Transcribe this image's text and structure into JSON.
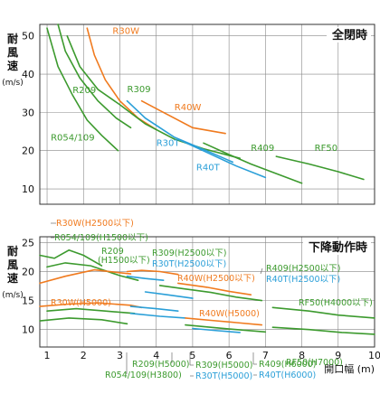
{
  "chart_data": [
    {
      "type": "line",
      "title": "全閉時",
      "ylabel": "耐風速",
      "yunit": "(m/s)",
      "ylim": [
        6,
        53
      ],
      "yticks": [
        10,
        20,
        30,
        40,
        50
      ],
      "xlim": [
        0.8,
        10
      ],
      "grid": true,
      "series": [
        {
          "name": "R30W",
          "color": "#f07a1e",
          "points": [
            [
              2.1,
              52
            ],
            [
              2.3,
              45
            ],
            [
              2.6,
              38.5
            ],
            [
              3.0,
              33
            ],
            [
              3.5,
              28.5
            ],
            [
              4.0,
              25.5
            ]
          ],
          "label_at": [
            2.8,
            50.5
          ]
        },
        {
          "name": "R40W",
          "color": "#f07a1e",
          "points": [
            [
              3.6,
              33
            ],
            [
              4.2,
              30
            ],
            [
              5.0,
              26
            ],
            [
              5.9,
              24.5
            ]
          ],
          "label_at": [
            4.5,
            30.6
          ]
        },
        {
          "name": "R309",
          "color": "#3c9a2e",
          "points": [
            [
              1.55,
              50
            ],
            [
              1.9,
              42
            ],
            [
              2.4,
              36
            ],
            [
              3.0,
              32
            ],
            [
              3.7,
              27
            ],
            [
              4.5,
              23
            ],
            [
              5.3,
              20.5
            ],
            [
              6.3,
              18
            ]
          ],
          "label_at": [
            3.2,
            35.3
          ]
        },
        {
          "name": "R209",
          "color": "#3c9a2e",
          "points": [
            [
              1.3,
              53
            ],
            [
              1.5,
              46
            ],
            [
              1.9,
              39
            ],
            [
              2.4,
              33
            ],
            [
              2.9,
              28.5
            ],
            [
              3.3,
              26
            ]
          ],
          "label_at": [
            1.7,
            35
          ]
        },
        {
          "name": "R054/109",
          "color": "#3c9a2e",
          "points": [
            [
              1.0,
              52
            ],
            [
              1.3,
              42
            ],
            [
              1.7,
              34.5
            ],
            [
              2.1,
              28
            ],
            [
              2.5,
              24
            ],
            [
              2.95,
              20
            ]
          ],
          "label_at": [
            1.1,
            22.6
          ]
        },
        {
          "name": "R30T",
          "color": "#2a9fd8",
          "points": [
            [
              3.2,
              33
            ],
            [
              3.7,
              28.5
            ],
            [
              4.5,
              23.5
            ],
            [
              5.5,
              19.5
            ],
            [
              6.1,
              17
            ]
          ],
          "label_at": [
            4.0,
            21.2
          ]
        },
        {
          "name": "R40T",
          "color": "#2a9fd8",
          "points": [
            [
              4.6,
              23
            ],
            [
              5.4,
              19.5
            ],
            [
              6.2,
              16
            ],
            [
              7.0,
              13
            ]
          ],
          "label_at": [
            5.1,
            14.8
          ]
        },
        {
          "name": "R409",
          "color": "#3c9a2e",
          "points": [
            [
              5.3,
              22
            ],
            [
              6.0,
              19
            ],
            [
              6.6,
              16.5
            ],
            [
              7.3,
              14
            ],
            [
              8.0,
              11.5
            ]
          ],
          "label_at": [
            6.6,
            19.9
          ]
        },
        {
          "name": "RF50",
          "color": "#3c9a2e",
          "points": [
            [
              7.3,
              18.5
            ],
            [
              8.2,
              16.5
            ],
            [
              9.0,
              14.5
            ],
            [
              9.7,
              12.5
            ]
          ],
          "label_at": [
            8.35,
            19.9
          ]
        }
      ]
    },
    {
      "type": "line",
      "title": "下降動作時",
      "ylabel": "耐風速",
      "yunit": "(m/s)",
      "xlabel": "開口幅 (m)",
      "ylim": [
        7,
        26
      ],
      "yticks": [
        10,
        15,
        20,
        25
      ],
      "xticks": [
        1,
        2,
        3,
        4,
        5,
        6,
        7,
        8,
        9,
        10
      ],
      "xlim": [
        0.8,
        10
      ],
      "grid": true,
      "series": [
        {
          "name": "R054/109(H1500以下)",
          "color": "#3c9a2e",
          "points": [
            [
              0.8,
              22.8
            ],
            [
              1.2,
              22.3
            ],
            [
              1.6,
              23.7
            ],
            [
              2.0,
              22.8
            ],
            [
              2.5,
              21
            ]
          ]
        },
        {
          "name": "R209(H1500以下)",
          "color": "#3c9a2e",
          "points": [
            [
              1.0,
              20.8
            ],
            [
              1.5,
              21.5
            ],
            [
              2.2,
              21
            ],
            [
              3.0,
              19.3
            ],
            [
              3.5,
              18.5
            ]
          ]
        },
        {
          "name": "R30W(H2500以下)",
          "color": "#f07a1e",
          "points": [
            [
              0.8,
              18
            ],
            [
              1.5,
              19.2
            ],
            [
              2.3,
              20.3
            ],
            [
              3.0,
              19.8
            ],
            [
              3.3,
              19.6
            ]
          ]
        },
        {
          "name": "R309(H2500以下)",
          "color": "#f07a1e",
          "points": [
            [
              3.2,
              20
            ],
            [
              3.6,
              20.2
            ],
            [
              4.1,
              20
            ],
            [
              4.6,
              19.5
            ]
          ]
        },
        {
          "name": "R30T(H2500以下)",
          "color": "#2a9fd8",
          "points": [
            [
              3.2,
              19.2
            ],
            [
              3.7,
              18.8
            ],
            [
              4.2,
              18.5
            ]
          ]
        },
        {
          "name": "R40W(H2500以下)",
          "color": "#f07a1e",
          "points": [
            [
              4.6,
              18
            ],
            [
              5.4,
              17.3
            ],
            [
              6.0,
              16.6
            ],
            [
              6.6,
              16
            ]
          ]
        },
        {
          "name": "R409(H2500以下)",
          "color": "#3c9a2e",
          "points": [
            [
              4.1,
              17.6
            ],
            [
              4.8,
              17
            ],
            [
              5.5,
              16.4
            ],
            [
              6.2,
              15.6
            ],
            [
              6.9,
              15
            ]
          ]
        },
        {
          "name": "R40T(H2500以下)",
          "color": "#2a9fd8",
          "points": [
            [
              3.7,
              16.5
            ],
            [
              4.3,
              16
            ],
            [
              5.0,
              15.4
            ]
          ]
        },
        {
          "name": "RF50(H4000以下)",
          "color": "#3c9a2e",
          "points": [
            [
              7.2,
              13.8
            ],
            [
              8.2,
              13.2
            ],
            [
              9.0,
              12.5
            ],
            [
              10.0,
              12
            ]
          ]
        },
        {
          "name": "R30W(H5000)",
          "color": "#f07a1e",
          "points": [
            [
              0.8,
              14
            ],
            [
              1.6,
              14.4
            ],
            [
              2.4,
              14.6
            ],
            [
              3.3,
              14.2
            ],
            [
              3.6,
              13.8
            ]
          ]
        },
        {
          "name": "R309(H5000)",
          "color": "#2a9fd8",
          "points": [
            [
              3.3,
              14
            ],
            [
              4.0,
              13.6
            ],
            [
              4.6,
              13.2
            ]
          ]
        },
        {
          "name": "R209(H5000)",
          "color": "#3c9a2e",
          "points": [
            [
              1.0,
              13.2
            ],
            [
              1.8,
              13.6
            ],
            [
              2.6,
              13.2
            ],
            [
              3.4,
              12.8
            ]
          ]
        },
        {
          "name": "R30T(H5000)",
          "color": "#2a9fd8",
          "points": [
            [
              3.3,
              12.8
            ],
            [
              4.1,
              12.3
            ],
            [
              4.8,
              12
            ]
          ]
        },
        {
          "name": "R054/109(H3800)",
          "color": "#3c9a2e",
          "points": [
            [
              0.8,
              11.5
            ],
            [
              1.6,
              12
            ],
            [
              2.5,
              11.7
            ],
            [
              3.2,
              11
            ]
          ]
        },
        {
          "name": "R40W(H5000)",
          "color": "#f07a1e",
          "points": [
            [
              4.8,
              12
            ],
            [
              5.5,
              11.6
            ],
            [
              6.2,
              11.2
            ],
            [
              6.9,
              10.8
            ]
          ]
        },
        {
          "name": "R409(H6000)",
          "color": "#3c9a2e",
          "points": [
            [
              4.8,
              10.8
            ],
            [
              5.5,
              10.4
            ],
            [
              6.2,
              10
            ],
            [
              7.0,
              9.6
            ]
          ]
        },
        {
          "name": "R40T(H6000)",
          "color": "#2a9fd8",
          "points": [
            [
              5.0,
              10.2
            ],
            [
              5.7,
              9.8
            ],
            [
              6.3,
              9.5
            ]
          ]
        },
        {
          "name": "RF50(H7000)",
          "color": "#3c9a2e",
          "points": [
            [
              7.2,
              10.4
            ],
            [
              8.2,
              10
            ],
            [
              9.1,
              9.5
            ],
            [
              10.0,
              9.2
            ]
          ]
        }
      ],
      "labels": [
        {
          "text": "R30W(H2500以下)",
          "color": "#f07a1e"
        },
        {
          "text": "R054/109(H1500以下)",
          "color": "#3c9a2e"
        },
        {
          "text": "R209",
          "color": "#3c9a2e"
        },
        {
          "text": "(H1500以下)",
          "color": "#3c9a2e"
        },
        {
          "text": "R309(H2500以下)",
          "color": "#3c9a2e"
        },
        {
          "text": "R30T(H2500以下)",
          "color": "#2a9fd8"
        },
        {
          "text": "R40W(H2500以下)",
          "color": "#f07a1e"
        },
        {
          "text": "R409(H2500以下)",
          "color": "#3c9a2e"
        },
        {
          "text": "R40T(H2500以下)",
          "color": "#2a9fd8"
        },
        {
          "text": "RF50(H4000以下)",
          "color": "#3c9a2e"
        },
        {
          "text": "R30W(H5000)",
          "color": "#f07a1e"
        },
        {
          "text": "R40W(H5000)",
          "color": "#f07a1e"
        },
        {
          "text": "RF50(H7000)",
          "color": "#3c9a2e"
        },
        {
          "text": "R209(H5000)",
          "color": "#3c9a2e"
        },
        {
          "text": "R054/109(H3800)",
          "color": "#3c9a2e"
        },
        {
          "text": "R309(H5000)",
          "color": "#3c9a2e"
        },
        {
          "text": "R30T(H5000)",
          "color": "#2a9fd8"
        },
        {
          "text": "R409(H6000)",
          "color": "#3c9a2e"
        },
        {
          "text": "R40T(H6000)",
          "color": "#2a9fd8"
        }
      ]
    }
  ]
}
